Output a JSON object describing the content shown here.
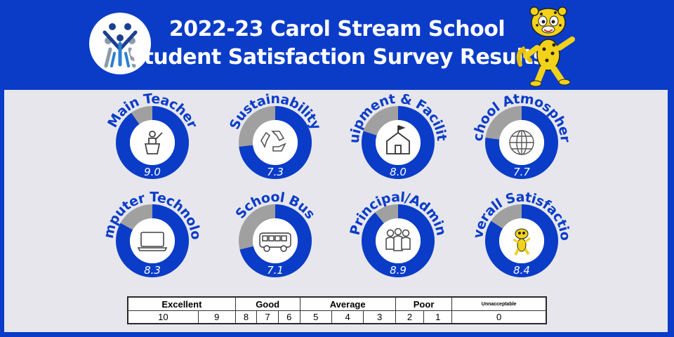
{
  "header": {
    "title_line1": "2022-23 Carol Stream School",
    "title_line2": "Student Satisfaction Survey Results"
  },
  "colors": {
    "brand_blue": "#0a3cc8",
    "gray_remainder": "#a0a0a0",
    "panel": "#e6e6ec"
  },
  "gauges": [
    {
      "label": "Main Teacher",
      "value": "9.0",
      "score": 9.0,
      "icon": "teacher-at-podium-icon"
    },
    {
      "label": "Sustainability",
      "value": "7.3",
      "score": 7.3,
      "icon": "recycle-icon"
    },
    {
      "label": "Equipment & Facilities",
      "value": "8.0",
      "score": 8.0,
      "icon": "schoolhouse-icon"
    },
    {
      "label": "School Atmosphere",
      "value": "7.7",
      "score": 7.7,
      "icon": "globe-icon"
    },
    {
      "label": "Computer Technology",
      "value": "8.3",
      "score": 8.3,
      "icon": "laptop-icon"
    },
    {
      "label": "School Bus",
      "value": "7.1",
      "score": 7.1,
      "icon": "school-bus-icon"
    },
    {
      "label": "Principal/Admin",
      "value": "8.9",
      "score": 8.9,
      "icon": "people-group-icon"
    },
    {
      "label": "Overall Satisfaction",
      "value": "8.4",
      "score": 8.4,
      "icon": "cheetah-mascot-icon"
    }
  ],
  "scale": {
    "categories": [
      "Excellent",
      "Good",
      "Average",
      "Poor",
      "Unnacceptable"
    ],
    "numbers": [
      "10",
      "9",
      "8",
      "7",
      "6",
      "5",
      "4",
      "3",
      "2",
      "1",
      "0"
    ]
  }
}
